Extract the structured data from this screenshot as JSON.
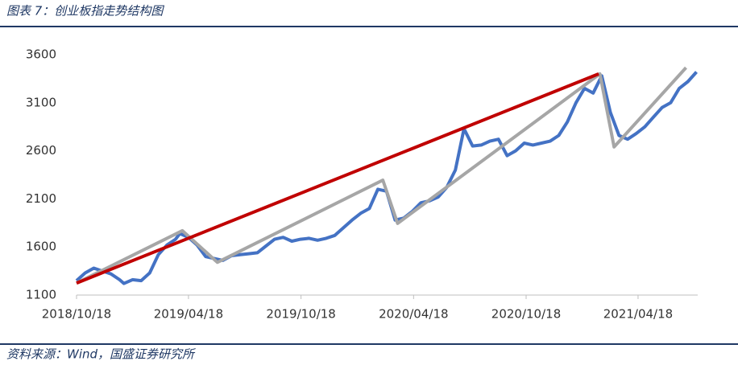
{
  "header": {
    "title": "图表 7：创业板指走势结构图"
  },
  "chart_data": {
    "type": "line",
    "x": [
      "2018/10/18",
      "2018/11/01",
      "2018/11/15",
      "2018/11/29",
      "2018/12/13",
      "2018/12/27",
      "2019/01/03",
      "2019/01/17",
      "2019/01/31",
      "2019/02/14",
      "2019/02/28",
      "2019/03/14",
      "2019/03/28",
      "2019/04/04",
      "2019/04/18",
      "2019/05/02",
      "2019/05/16",
      "2019/05/30",
      "2019/06/13",
      "2019/06/27",
      "2019/07/11",
      "2019/07/25",
      "2019/08/08",
      "2019/08/22",
      "2019/09/05",
      "2019/09/19",
      "2019/10/03",
      "2019/10/17",
      "2019/10/31",
      "2019/11/14",
      "2019/11/28",
      "2019/12/12",
      "2019/12/26",
      "2020/01/09",
      "2020/01/23",
      "2020/02/06",
      "2020/02/20",
      "2020/03/05",
      "2020/03/19",
      "2020/04/02",
      "2020/04/16",
      "2020/04/30",
      "2020/05/14",
      "2020/05/28",
      "2020/06/11",
      "2020/06/25",
      "2020/07/09",
      "2020/07/23",
      "2020/08/06",
      "2020/08/20",
      "2020/09/03",
      "2020/09/17",
      "2020/10/01",
      "2020/10/15",
      "2020/10/29",
      "2020/11/12",
      "2020/11/26",
      "2020/12/10",
      "2020/12/24",
      "2021/01/07",
      "2021/01/21",
      "2021/02/04",
      "2021/02/18",
      "2021/03/04",
      "2021/03/18",
      "2021/04/01",
      "2021/04/15",
      "2021/04/29",
      "2021/05/13",
      "2021/05/27",
      "2021/06/10",
      "2021/06/24",
      "2021/07/08",
      "2021/07/22"
    ],
    "series": [
      {
        "color": "#4472c4",
        "values": [
          1250,
          1330,
          1380,
          1350,
          1320,
          1260,
          1220,
          1260,
          1250,
          1330,
          1520,
          1620,
          1680,
          1740,
          1700,
          1620,
          1500,
          1480,
          1460,
          1510,
          1520,
          1530,
          1540,
          1610,
          1680,
          1700,
          1660,
          1680,
          1690,
          1670,
          1690,
          1720,
          1800,
          1880,
          1950,
          2000,
          2200,
          2180,
          1880,
          1900,
          1970,
          2060,
          2080,
          2120,
          2220,
          2400,
          2830,
          2650,
          2660,
          2700,
          2720,
          2550,
          2600,
          2680,
          2660,
          2680,
          2700,
          2760,
          2900,
          3100,
          3250,
          3200,
          3380,
          3000,
          2760,
          2720,
          2780,
          2850,
          2950,
          3050,
          3100,
          3250,
          3320,
          3420
        ]
      }
    ],
    "trend_lines": [
      {
        "color": "#a6a6a6",
        "x": [
          "2018/10/18",
          "2019/04/08",
          "2019/06/04",
          "2020/02/28",
          "2020/03/23",
          "2021/02/15",
          "2021/03/10",
          "2021/07/05"
        ],
        "values": [
          1225,
          1770,
          1440,
          2295,
          1845,
          3400,
          2640,
          3465
        ]
      },
      {
        "color": "#c00000",
        "x": [
          "2018/10/18",
          "2021/02/13"
        ],
        "values": [
          1225,
          3400
        ]
      }
    ],
    "xlim": [
      "2018/10/18",
      "2021/07/24"
    ],
    "xticks": [
      "2018/10/18",
      "2019/04/18",
      "2019/10/18",
      "2020/04/18",
      "2020/10/18",
      "2021/04/18"
    ],
    "ylim": [
      1100,
      3600
    ],
    "yticks": [
      1100,
      1600,
      2100,
      2600,
      3100,
      3600
    ]
  },
  "footer": {
    "source": "资料来源：Wind，国盛证券研究所"
  }
}
